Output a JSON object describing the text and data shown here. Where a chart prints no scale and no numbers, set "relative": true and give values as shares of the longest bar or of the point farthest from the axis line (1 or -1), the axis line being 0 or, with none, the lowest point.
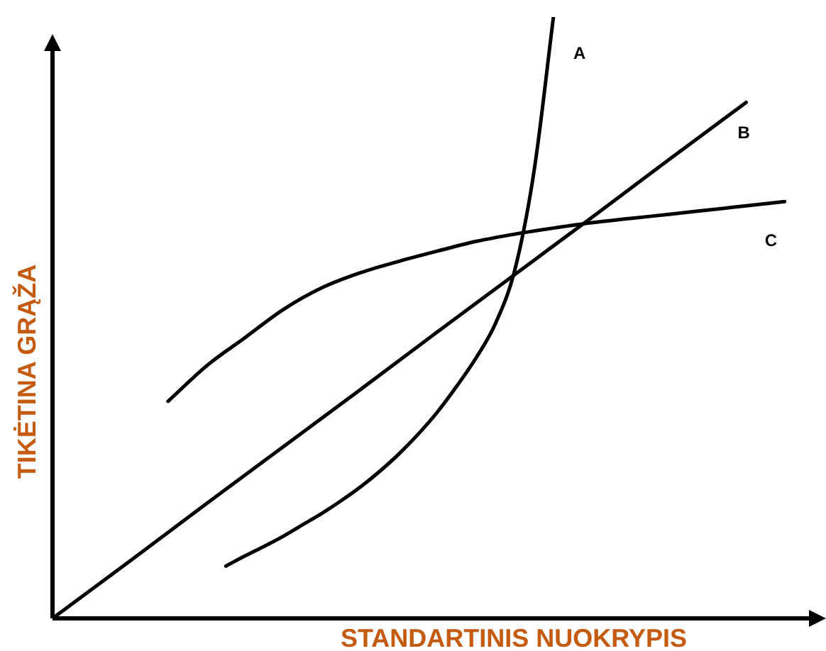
{
  "chart_data": {
    "type": "line",
    "relative": true,
    "xlabel": "STANDARTINIS NUOKRYPIS",
    "ylabel": "TIKĖTINA GRĄŽA",
    "categories": [
      null,
      null,
      null,
      null,
      null,
      null,
      null,
      null,
      null,
      null,
      null,
      null,
      null,
      null,
      null,
      null,
      null,
      null,
      null,
      null,
      null,
      null,
      null,
      null,
      null,
      null,
      null,
      null,
      null,
      null,
      null,
      null,
      null,
      null,
      null,
      null,
      null,
      null,
      null,
      null,
      null
    ],
    "series": [
      {
        "name": "A",
        "color": "#000000",
        "values": [
          null,
          null,
          null,
          null,
          null,
          null,
          null,
          null,
          null,
          0.087,
          0.104,
          0.12,
          0.137,
          0.156,
          0.175,
          0.196,
          0.219,
          0.245,
          0.274,
          0.307,
          0.344,
          0.387,
          0.434,
          0.491,
          0.58,
          0.745,
          1,
          null,
          null,
          null,
          null,
          null,
          null,
          null,
          null,
          null,
          null,
          null,
          null,
          null,
          null
        ]
      },
      {
        "name": "B",
        "color": "#000000",
        "values": [
          0,
          null,
          null,
          null,
          0.095,
          null,
          null,
          null,
          0.191,
          null,
          null,
          null,
          0.286,
          null,
          null,
          null,
          0.381,
          null,
          null,
          null,
          0.477,
          null,
          null,
          null,
          0.572,
          null,
          null,
          null,
          0.667,
          null,
          null,
          null,
          0.763,
          null,
          null,
          null,
          0.858,
          null,
          null,
          null,
          null
        ]
      },
      {
        "name": "C",
        "color": "#000000",
        "values": [
          null,
          null,
          null,
          null,
          null,
          null,
          0.361,
          null,
          0.42,
          null,
          0.467,
          null,
          0.514,
          null,
          0.55,
          null,
          0.575,
          null,
          0.594,
          null,
          0.611,
          null,
          0.627,
          null,
          0.639,
          null,
          0.649,
          null,
          0.658,
          null,
          0.665,
          null,
          0.672,
          null,
          0.679,
          null,
          0.686,
          null,
          0.693,
          null,
          null
        ]
      }
    ]
  }
}
